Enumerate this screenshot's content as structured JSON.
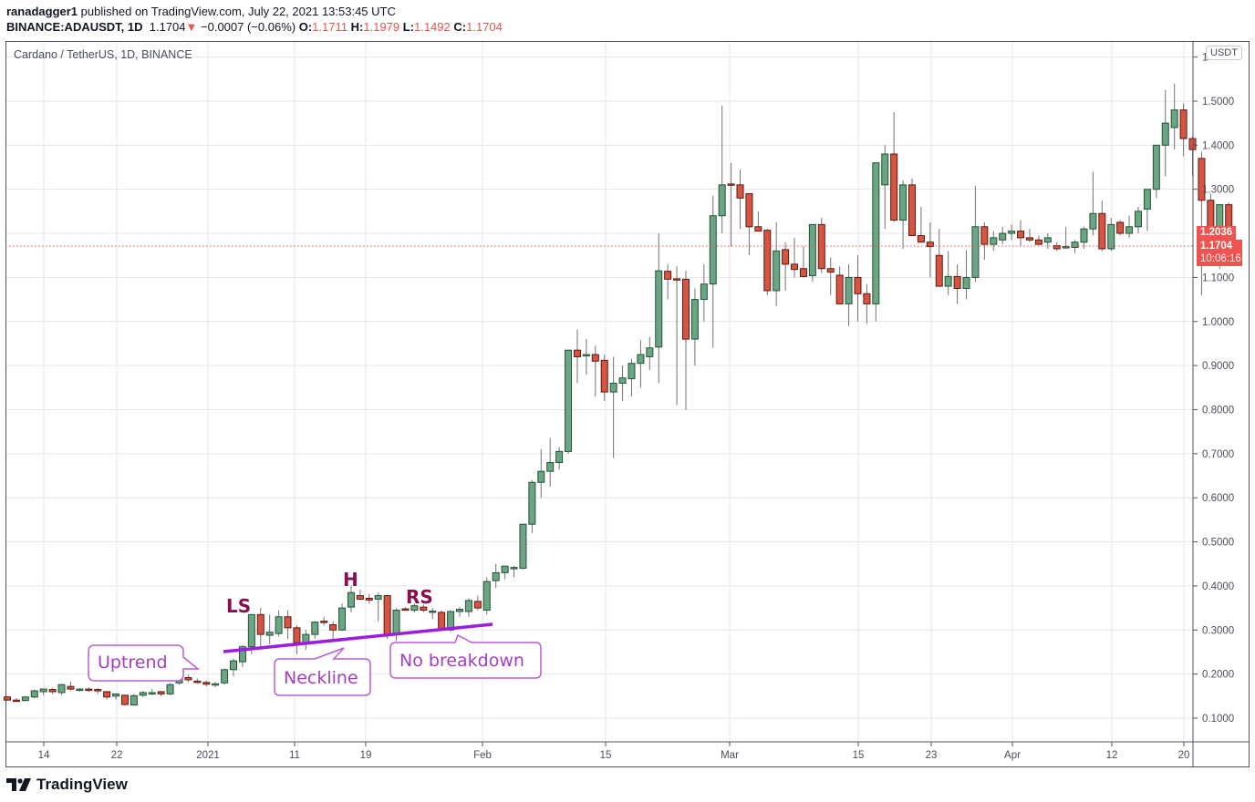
{
  "header": {
    "author": "ranadagger1",
    "published_text": "published on TradingView.com, July 22, 2021 13:53:45 UTC",
    "symbol": "BINANCE:ADAUSDT, 1D",
    "last": "1.1704",
    "change": "−0.0007 (−0.06%)",
    "o_label": "O:",
    "o": "1.1711",
    "h_label": "H:",
    "h": "1.1979",
    "l_label": "L:",
    "l": "1.1492",
    "c_label": "C:",
    "c": "1.1704",
    "down_arrow": "▼"
  },
  "legend": {
    "title": "Cardano / TetherUS, 1D, BINANCE"
  },
  "price_axis": {
    "currency": "USDT",
    "top_partial": "1",
    "ticks": [
      "1.5000",
      "1.4000",
      "1.3000",
      "1.1000",
      "1.0000",
      "0.9000",
      "0.8000",
      "0.7000",
      "0.6000",
      "0.5000",
      "0.4000",
      "0.3000",
      "0.2000",
      "0.1000"
    ],
    "labels": {
      "prev_close": "1.2036",
      "last": "1.1704",
      "countdown": "10:06:16"
    }
  },
  "branding": {
    "logo_text": "TradingView"
  },
  "chart_data": {
    "type": "candlestick",
    "title": "Cardano / TetherUS, 1D, BINANCE",
    "xlabel": "",
    "ylabel": "USDT",
    "ylim": [
      0.04,
      1.62
    ],
    "grid": true,
    "x_ticks": [
      "14",
      "22",
      "2021",
      "11",
      "19",
      "Feb",
      "15",
      "Mar",
      "15",
      "23",
      "Apr",
      "12",
      "20"
    ],
    "y_ticks": [
      0.1,
      0.2,
      0.3,
      0.4,
      0.5,
      0.6,
      0.7,
      0.8,
      0.9,
      1.0,
      1.1,
      1.2,
      1.3,
      1.4,
      1.5
    ],
    "colors": {
      "up": "#6ba583",
      "down": "#d75442",
      "up_border": "#225437",
      "down_border": "#5b1a13",
      "wick": "#737375"
    },
    "start_date": "2020-12-10",
    "candles_ohlc": [
      [
        0.148,
        0.15,
        0.14,
        0.141
      ],
      [
        0.141,
        0.145,
        0.137,
        0.14
      ],
      [
        0.14,
        0.15,
        0.138,
        0.148
      ],
      [
        0.148,
        0.165,
        0.145,
        0.162
      ],
      [
        0.16,
        0.165,
        0.152,
        0.166
      ],
      [
        0.165,
        0.168,
        0.155,
        0.16
      ],
      [
        0.158,
        0.178,
        0.152,
        0.176
      ],
      [
        0.172,
        0.183,
        0.163,
        0.166
      ],
      [
        0.163,
        0.168,
        0.16,
        0.166
      ],
      [
        0.166,
        0.17,
        0.16,
        0.165
      ],
      [
        0.165,
        0.168,
        0.155,
        0.162
      ],
      [
        0.16,
        0.162,
        0.142,
        0.148
      ],
      [
        0.15,
        0.155,
        0.142,
        0.155
      ],
      [
        0.152,
        0.152,
        0.128,
        0.131
      ],
      [
        0.13,
        0.155,
        0.128,
        0.151
      ],
      [
        0.152,
        0.162,
        0.148,
        0.158
      ],
      [
        0.158,
        0.166,
        0.152,
        0.158
      ],
      [
        0.16,
        0.162,
        0.15,
        0.155
      ],
      [
        0.155,
        0.18,
        0.152,
        0.176
      ],
      [
        0.18,
        0.198,
        0.176,
        0.191
      ],
      [
        0.192,
        0.198,
        0.182,
        0.187
      ],
      [
        0.184,
        0.19,
        0.178,
        0.182
      ],
      [
        0.181,
        0.186,
        0.172,
        0.177
      ],
      [
        0.176,
        0.182,
        0.17,
        0.178
      ],
      [
        0.18,
        0.213,
        0.176,
        0.21
      ],
      [
        0.21,
        0.235,
        0.195,
        0.23
      ],
      [
        0.228,
        0.266,
        0.216,
        0.262
      ],
      [
        0.262,
        0.276,
        0.245,
        0.335
      ],
      [
        0.335,
        0.35,
        0.255,
        0.29
      ],
      [
        0.288,
        0.335,
        0.268,
        0.295
      ],
      [
        0.292,
        0.345,
        0.285,
        0.33
      ],
      [
        0.33,
        0.345,
        0.28,
        0.305
      ],
      [
        0.305,
        0.31,
        0.245,
        0.271
      ],
      [
        0.27,
        0.3,
        0.255,
        0.29
      ],
      [
        0.29,
        0.32,
        0.28,
        0.318
      ],
      [
        0.32,
        0.33,
        0.31,
        0.318
      ],
      [
        0.312,
        0.32,
        0.275,
        0.3
      ],
      [
        0.3,
        0.36,
        0.298,
        0.35
      ],
      [
        0.352,
        0.4,
        0.34,
        0.385
      ],
      [
        0.378,
        0.392,
        0.368,
        0.37
      ],
      [
        0.372,
        0.382,
        0.36,
        0.368
      ],
      [
        0.37,
        0.385,
        0.32,
        0.378
      ],
      [
        0.378,
        0.38,
        0.28,
        0.29
      ],
      [
        0.292,
        0.35,
        0.275,
        0.345
      ],
      [
        0.348,
        0.352,
        0.345,
        0.346
      ],
      [
        0.345,
        0.36,
        0.34,
        0.355
      ],
      [
        0.352,
        0.358,
        0.34,
        0.345
      ],
      [
        0.34,
        0.35,
        0.325,
        0.343
      ],
      [
        0.34,
        0.345,
        0.298,
        0.3
      ],
      [
        0.3,
        0.345,
        0.295,
        0.342
      ],
      [
        0.342,
        0.352,
        0.33,
        0.347
      ],
      [
        0.342,
        0.372,
        0.33,
        0.367
      ],
      [
        0.365,
        0.378,
        0.345,
        0.35
      ],
      [
        0.345,
        0.42,
        0.335,
        0.41
      ],
      [
        0.412,
        0.45,
        0.395,
        0.43
      ],
      [
        0.43,
        0.445,
        0.415,
        0.445
      ],
      [
        0.442,
        0.445,
        0.42,
        0.442
      ],
      [
        0.44,
        0.53,
        0.438,
        0.54
      ],
      [
        0.54,
        0.64,
        0.52,
        0.635
      ],
      [
        0.635,
        0.71,
        0.6,
        0.66
      ],
      [
        0.66,
        0.736,
        0.625,
        0.68
      ],
      [
        0.68,
        0.715,
        0.665,
        0.705
      ],
      [
        0.705,
        0.935,
        0.7,
        0.935
      ],
      [
        0.935,
        0.982,
        0.86,
        0.92
      ],
      [
        0.922,
        0.96,
        0.88,
        0.925
      ],
      [
        0.925,
        0.945,
        0.83,
        0.91
      ],
      [
        0.912,
        0.925,
        0.82,
        0.84
      ],
      [
        0.84,
        0.92,
        0.69,
        0.86
      ],
      [
        0.86,
        0.9,
        0.82,
        0.872
      ],
      [
        0.87,
        0.915,
        0.83,
        0.905
      ],
      [
        0.905,
        0.958,
        0.85,
        0.925
      ],
      [
        0.92,
        0.965,
        0.89,
        0.94
      ],
      [
        0.942,
        1.2,
        0.86,
        1.115
      ],
      [
        1.114,
        1.13,
        1.05,
        1.096
      ],
      [
        1.097,
        1.125,
        0.81,
        1.096
      ],
      [
        1.096,
        1.115,
        0.8,
        0.96
      ],
      [
        0.96,
        1.075,
        0.9,
        1.05
      ],
      [
        1.05,
        1.13,
        1.0,
        1.085
      ],
      [
        1.085,
        1.285,
        0.94,
        1.24
      ],
      [
        1.24,
        1.49,
        1.2,
        1.31
      ],
      [
        1.312,
        1.36,
        1.17,
        1.31
      ],
      [
        1.31,
        1.345,
        1.21,
        1.28
      ],
      [
        1.29,
        1.29,
        1.15,
        1.215
      ],
      [
        1.215,
        1.25,
        1.205,
        1.205
      ],
      [
        1.207,
        1.21,
        1.06,
        1.07
      ],
      [
        1.07,
        1.225,
        1.035,
        1.16
      ],
      [
        1.163,
        1.18,
        1.07,
        1.13
      ],
      [
        1.13,
        1.19,
        1.1,
        1.118
      ],
      [
        1.12,
        1.17,
        1.1,
        1.102
      ],
      [
        1.104,
        1.215,
        1.09,
        1.22
      ],
      [
        1.22,
        1.235,
        1.11,
        1.12
      ],
      [
        1.12,
        1.145,
        1.06,
        1.112
      ],
      [
        1.105,
        1.125,
        1.055,
        1.04
      ],
      [
        1.04,
        1.13,
        0.99,
        1.1
      ],
      [
        1.1,
        1.15,
        1.0,
        1.063
      ],
      [
        1.063,
        1.085,
        0.995,
        1.04
      ],
      [
        1.04,
        1.325,
        1.0,
        1.36
      ],
      [
        1.31,
        1.4,
        1.21,
        1.38
      ],
      [
        1.38,
        1.475,
        1.225,
        1.23
      ],
      [
        1.23,
        1.32,
        1.165,
        1.31
      ],
      [
        1.31,
        1.325,
        1.195,
        1.195
      ],
      [
        1.195,
        1.26,
        1.18,
        1.18
      ],
      [
        1.18,
        1.225,
        1.1,
        1.17
      ],
      [
        1.15,
        1.21,
        1.09,
        1.08
      ],
      [
        1.08,
        1.16,
        1.06,
        1.102
      ],
      [
        1.102,
        1.13,
        1.04,
        1.075
      ],
      [
        1.075,
        1.162,
        1.05,
        1.1
      ],
      [
        1.1,
        1.307,
        1.09,
        1.215
      ],
      [
        1.215,
        1.225,
        1.14,
        1.175
      ],
      [
        1.175,
        1.205,
        1.16,
        1.19
      ],
      [
        1.185,
        1.215,
        1.175,
        1.2
      ],
      [
        1.2,
        1.22,
        1.185,
        1.205
      ],
      [
        1.205,
        1.23,
        1.17,
        1.19
      ],
      [
        1.19,
        1.21,
        1.18,
        1.185
      ],
      [
        1.185,
        1.195,
        1.175,
        1.175
      ],
      [
        1.18,
        1.2,
        1.165,
        1.19
      ],
      [
        1.172,
        1.18,
        1.16,
        1.165
      ],
      [
        1.168,
        1.215,
        1.165,
        1.17
      ],
      [
        1.168,
        1.185,
        1.155,
        1.18
      ],
      [
        1.18,
        1.215,
        1.165,
        1.21
      ],
      [
        1.21,
        1.34,
        1.195,
        1.245
      ],
      [
        1.245,
        1.275,
        1.16,
        1.165
      ],
      [
        1.165,
        1.235,
        1.16,
        1.22
      ],
      [
        1.225,
        1.23,
        1.195,
        1.2
      ],
      [
        1.2,
        1.24,
        1.19,
        1.215
      ],
      [
        1.215,
        1.26,
        1.2,
        1.25
      ],
      [
        1.255,
        1.29,
        1.205,
        1.3
      ],
      [
        1.3,
        1.35,
        1.28,
        1.4
      ],
      [
        1.4,
        1.525,
        1.33,
        1.45
      ],
      [
        1.44,
        1.54,
        1.39,
        1.48
      ],
      [
        1.48,
        1.495,
        1.375,
        1.415
      ],
      [
        1.415,
        1.42,
        1.33,
        1.39
      ],
      [
        1.37,
        1.385,
        1.06,
        1.275
      ],
      [
        1.275,
        1.29,
        1.17,
        1.195
      ],
      [
        1.195,
        1.255,
        1.12,
        1.265
      ],
      [
        1.265,
        1.27,
        1.195,
        1.204
      ]
    ]
  },
  "annotations": {
    "pattern_labels": [
      {
        "text": "LS"
      },
      {
        "text": "H"
      },
      {
        "text": "RS"
      }
    ],
    "callouts": [
      {
        "text": "Uptrend"
      },
      {
        "text": "Neckline"
      },
      {
        "text": "No breakdown"
      }
    ],
    "neckline": {
      "color": "#9c1de0",
      "from": [
        0.255,
        "2021-01-02"
      ],
      "to": [
        0.315,
        "2021-02-01"
      ]
    }
  }
}
